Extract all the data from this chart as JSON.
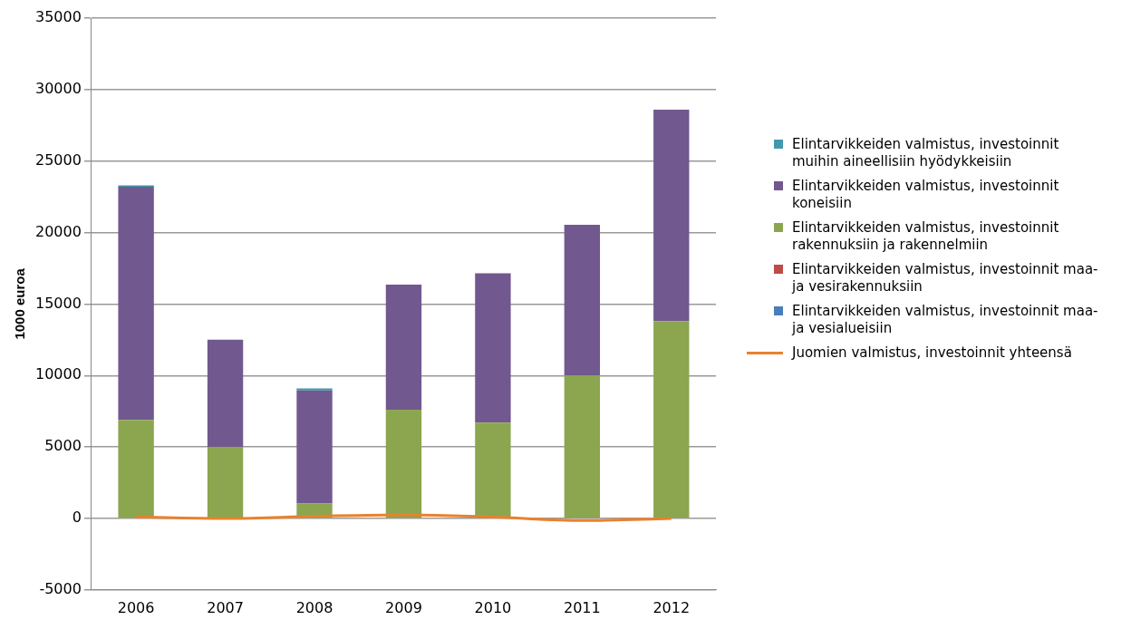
{
  "chart_data": {
    "type": "bar",
    "stacked": true,
    "ylabel": "1000 euroa",
    "categories": [
      "2006",
      "2007",
      "2008",
      "2009",
      "2010",
      "2011",
      "2012"
    ],
    "ylim": [
      -5000,
      35000
    ],
    "yticks": [
      -5000,
      0,
      5000,
      10000,
      15000,
      20000,
      25000,
      30000,
      35000
    ],
    "grid": "y",
    "legend": "right",
    "series": [
      {
        "name": "Elintarvikkeiden valmistus, investoinnit maa- ja vesialueisiin",
        "color": "#4a7ebb",
        "values": [
          0,
          0,
          0,
          0,
          null,
          0,
          0
        ]
      },
      {
        "name": "Elintarvikkeiden valmistus, investoinnit maa- ja vesirakennuksiin",
        "color": "#be4b48",
        "values": [
          0,
          0,
          0,
          0,
          0,
          0,
          0
        ]
      },
      {
        "name": "Elintarvikkeiden valmistus, investoinnit rakennuksiin ja rakennelmiin",
        "color": "#8ba64e",
        "values": [
          6900,
          5000,
          1050,
          7600,
          6700,
          10000,
          13800
        ]
      },
      {
        "name": "Elintarvikkeiden valmistus, investoinnit koneisiin",
        "color": "#71588f",
        "values": [
          16300,
          7500,
          7900,
          8750,
          10450,
          10550,
          14800
        ]
      },
      {
        "name": "Elintarvikkeiden valmistus, investoinnit muihin aineellisiin hyödykkeisiin",
        "color": "#4198af",
        "values": [
          100,
          0,
          150,
          0,
          0,
          0,
          0
        ]
      },
      {
        "name": "Juomien valmistus, investoinnit yhteensä",
        "color": "#e8822e",
        "type": "line",
        "values": [
          100,
          0,
          150,
          250,
          100,
          -150,
          0
        ]
      }
    ]
  }
}
